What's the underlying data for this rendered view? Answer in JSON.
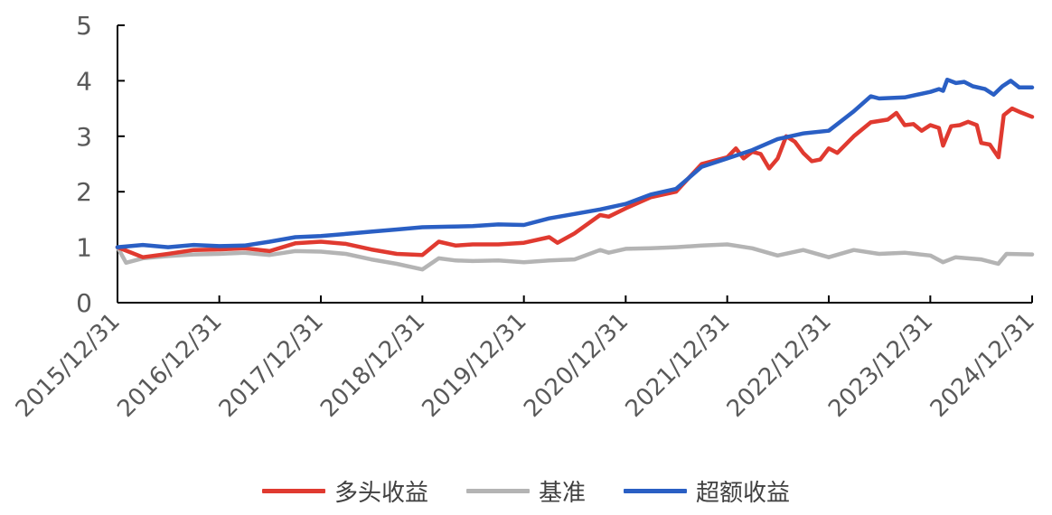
{
  "chart_data": {
    "type": "line",
    "title": "",
    "xlabel": "",
    "ylabel": "",
    "ylim": [
      0,
      5
    ],
    "yticks": [
      "0",
      "1",
      "2",
      "3",
      "4",
      "5"
    ],
    "xticks": [
      "2015/12/31",
      "2016/12/31",
      "2017/12/31",
      "2018/12/31",
      "2019/12/31",
      "2020/12/31",
      "2021/12/31",
      "2022/12/31",
      "2023/12/31",
      "2024/12/31"
    ],
    "grid": false,
    "legend_position": "bottom",
    "series": [
      {
        "name": "多头收益",
        "color": "#e03a30",
        "points": [
          [
            "2015/12/31",
            1.0
          ],
          [
            "2016/03/31",
            0.82
          ],
          [
            "2016/06/30",
            0.88
          ],
          [
            "2016/09/30",
            0.95
          ],
          [
            "2016/12/31",
            0.96
          ],
          [
            "2017/03/31",
            0.98
          ],
          [
            "2017/06/30",
            0.93
          ],
          [
            "2017/09/30",
            1.07
          ],
          [
            "2017/12/31",
            1.1
          ],
          [
            "2018/03/31",
            1.06
          ],
          [
            "2018/06/30",
            0.96
          ],
          [
            "2018/09/30",
            0.88
          ],
          [
            "2018/12/31",
            0.86
          ],
          [
            "2019/02/28",
            1.1
          ],
          [
            "2019/04/30",
            1.03
          ],
          [
            "2019/06/30",
            1.05
          ],
          [
            "2019/09/30",
            1.05
          ],
          [
            "2019/12/31",
            1.08
          ],
          [
            "2020/03/31",
            1.18
          ],
          [
            "2020/04/30",
            1.08
          ],
          [
            "2020/06/30",
            1.25
          ],
          [
            "2020/09/30",
            1.58
          ],
          [
            "2020/10/31",
            1.55
          ],
          [
            "2020/12/31",
            1.7
          ],
          [
            "2021/03/31",
            1.9
          ],
          [
            "2021/06/30",
            2.0
          ],
          [
            "2021/09/30",
            2.5
          ],
          [
            "2021/12/31",
            2.62
          ],
          [
            "2022/01/31",
            2.78
          ],
          [
            "2022/02/28",
            2.6
          ],
          [
            "2022/03/31",
            2.72
          ],
          [
            "2022/04/30",
            2.68
          ],
          [
            "2022/05/31",
            2.42
          ],
          [
            "2022/06/30",
            2.6
          ],
          [
            "2022/07/31",
            3.0
          ],
          [
            "2022/08/31",
            2.9
          ],
          [
            "2022/09/30",
            2.7
          ],
          [
            "2022/10/31",
            2.55
          ],
          [
            "2022/11/30",
            2.58
          ],
          [
            "2022/12/31",
            2.78
          ],
          [
            "2023/01/31",
            2.7
          ],
          [
            "2023/03/31",
            3.0
          ],
          [
            "2023/05/31",
            3.25
          ],
          [
            "2023/07/31",
            3.3
          ],
          [
            "2023/08/31",
            3.42
          ],
          [
            "2023/09/30",
            3.2
          ],
          [
            "2023/10/31",
            3.22
          ],
          [
            "2023/11/30",
            3.1
          ],
          [
            "2023/12/31",
            3.2
          ],
          [
            "2024/01/31",
            3.15
          ],
          [
            "2024/02/15",
            2.83
          ],
          [
            "2024/03/15",
            3.18
          ],
          [
            "2024/04/15",
            3.2
          ],
          [
            "2024/05/15",
            3.26
          ],
          [
            "2024/06/15",
            3.2
          ],
          [
            "2024/07/01",
            2.88
          ],
          [
            "2024/08/01",
            2.85
          ],
          [
            "2024/09/01",
            2.62
          ],
          [
            "2024/09/20",
            3.38
          ],
          [
            "2024/10/20",
            3.5
          ],
          [
            "2024/11/20",
            3.43
          ],
          [
            "2024/12/31",
            3.35
          ]
        ]
      },
      {
        "name": "基准",
        "color": "#b4b4b4",
        "points": [
          [
            "2015/12/31",
            1.0
          ],
          [
            "2016/01/31",
            0.72
          ],
          [
            "2016/03/31",
            0.8
          ],
          [
            "2016/06/30",
            0.84
          ],
          [
            "2016/09/30",
            0.87
          ],
          [
            "2016/12/31",
            0.88
          ],
          [
            "2017/03/31",
            0.9
          ],
          [
            "2017/06/30",
            0.86
          ],
          [
            "2017/09/30",
            0.93
          ],
          [
            "2017/12/31",
            0.92
          ],
          [
            "2018/03/31",
            0.88
          ],
          [
            "2018/06/30",
            0.78
          ],
          [
            "2018/09/30",
            0.7
          ],
          [
            "2018/12/31",
            0.6
          ],
          [
            "2019/02/28",
            0.8
          ],
          [
            "2019/04/30",
            0.76
          ],
          [
            "2019/06/30",
            0.75
          ],
          [
            "2019/09/30",
            0.76
          ],
          [
            "2019/12/31",
            0.73
          ],
          [
            "2020/03/31",
            0.76
          ],
          [
            "2020/06/30",
            0.78
          ],
          [
            "2020/09/30",
            0.95
          ],
          [
            "2020/10/31",
            0.9
          ],
          [
            "2020/12/31",
            0.97
          ],
          [
            "2021/03/31",
            0.98
          ],
          [
            "2021/06/30",
            1.0
          ],
          [
            "2021/09/30",
            1.03
          ],
          [
            "2021/12/31",
            1.05
          ],
          [
            "2022/03/31",
            0.98
          ],
          [
            "2022/06/30",
            0.85
          ],
          [
            "2022/09/30",
            0.95
          ],
          [
            "2022/12/31",
            0.82
          ],
          [
            "2023/03/31",
            0.95
          ],
          [
            "2023/06/30",
            0.88
          ],
          [
            "2023/09/30",
            0.9
          ],
          [
            "2023/12/31",
            0.85
          ],
          [
            "2024/02/15",
            0.73
          ],
          [
            "2024/03/31",
            0.82
          ],
          [
            "2024/06/30",
            0.78
          ],
          [
            "2024/08/31",
            0.7
          ],
          [
            "2024/09/30",
            0.88
          ],
          [
            "2024/12/31",
            0.87
          ]
        ]
      },
      {
        "name": "超额收益",
        "color": "#2a5fc4",
        "points": [
          [
            "2015/12/31",
            1.0
          ],
          [
            "2016/03/31",
            1.04
          ],
          [
            "2016/06/30",
            1.0
          ],
          [
            "2016/09/30",
            1.04
          ],
          [
            "2016/12/31",
            1.02
          ],
          [
            "2017/03/31",
            1.03
          ],
          [
            "2017/06/30",
            1.1
          ],
          [
            "2017/09/30",
            1.18
          ],
          [
            "2017/12/31",
            1.2
          ],
          [
            "2018/03/31",
            1.24
          ],
          [
            "2018/06/30",
            1.28
          ],
          [
            "2018/09/30",
            1.32
          ],
          [
            "2018/12/31",
            1.36
          ],
          [
            "2019/03/31",
            1.37
          ],
          [
            "2019/06/30",
            1.38
          ],
          [
            "2019/09/30",
            1.41
          ],
          [
            "2019/12/31",
            1.4
          ],
          [
            "2020/03/31",
            1.52
          ],
          [
            "2020/06/30",
            1.6
          ],
          [
            "2020/09/30",
            1.68
          ],
          [
            "2020/12/31",
            1.78
          ],
          [
            "2021/03/31",
            1.95
          ],
          [
            "2021/06/30",
            2.05
          ],
          [
            "2021/09/30",
            2.45
          ],
          [
            "2021/12/31",
            2.6
          ],
          [
            "2022/03/31",
            2.75
          ],
          [
            "2022/06/30",
            2.95
          ],
          [
            "2022/09/30",
            3.05
          ],
          [
            "2022/12/31",
            3.1
          ],
          [
            "2023/03/31",
            3.45
          ],
          [
            "2023/05/31",
            3.72
          ],
          [
            "2023/06/30",
            3.68
          ],
          [
            "2023/09/30",
            3.7
          ],
          [
            "2023/12/31",
            3.8
          ],
          [
            "2024/01/31",
            3.85
          ],
          [
            "2024/02/15",
            3.82
          ],
          [
            "2024/03/01",
            4.02
          ],
          [
            "2024/04/01",
            3.96
          ],
          [
            "2024/05/01",
            3.98
          ],
          [
            "2024/06/01",
            3.9
          ],
          [
            "2024/07/15",
            3.85
          ],
          [
            "2024/08/15",
            3.75
          ],
          [
            "2024/09/15",
            3.9
          ],
          [
            "2024/10/15",
            4.0
          ],
          [
            "2024/11/15",
            3.88
          ],
          [
            "2024/12/31",
            3.88
          ]
        ]
      }
    ]
  }
}
